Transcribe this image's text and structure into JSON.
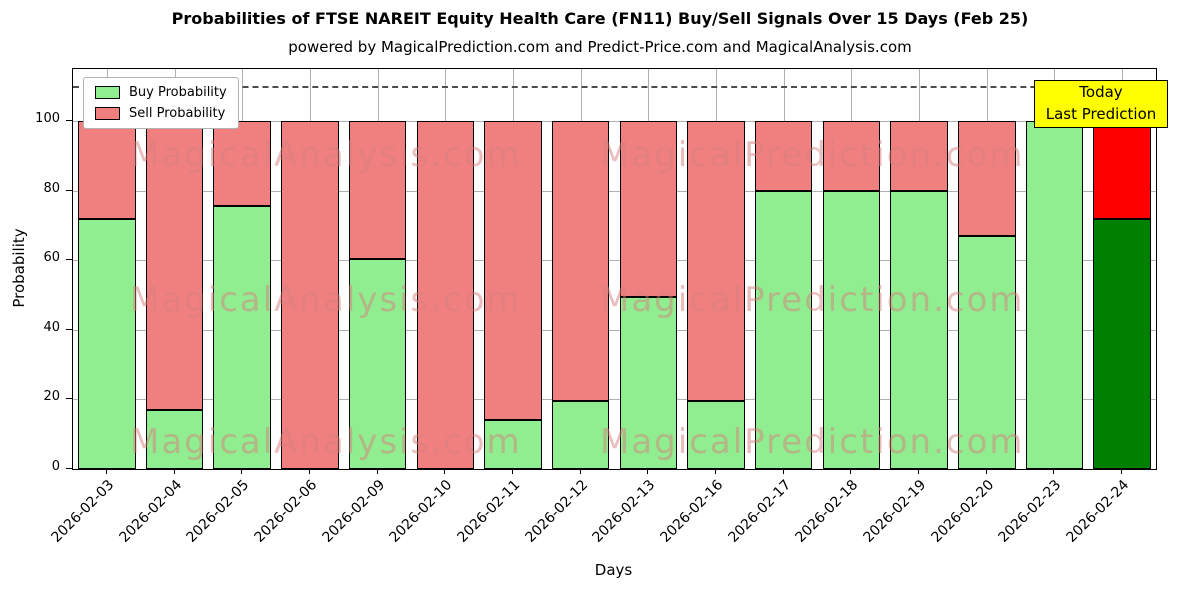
{
  "title": "Probabilities of FTSE NAREIT Equity Health Care (FN11) Buy/Sell Signals Over 15 Days (Feb 25)",
  "subtitle": "powered by MagicalPrediction.com and Predict-Price.com and MagicalAnalysis.com",
  "legend": {
    "buy_label": "Buy Probability",
    "sell_label": "Sell Probability"
  },
  "annotation": {
    "line1": "Today",
    "line2": "Last Prediction"
  },
  "watermarks": [
    "MagicalAnalysis.com",
    "MagicalPrediction.com"
  ],
  "colors": {
    "buy": "#90EE90",
    "sell": "#F08080",
    "today_buy": "#008000",
    "today_sell": "#FF0000",
    "annotation_bg": "#FFFF00",
    "watermark": "rgba(216,126,126,0.5)",
    "grid": "#b0b0b0"
  },
  "axes": {
    "xlabel": "Days",
    "ylabel": "Probability"
  },
  "chart_data": {
    "type": "bar",
    "stacked": true,
    "title": "Probabilities of FTSE NAREIT Equity Health Care (FN11) Buy/Sell Signals Over 15 Days (Feb 25)",
    "xlabel": "Days",
    "ylabel": "Probability",
    "categories": [
      "2026-02-03",
      "2026-02-04",
      "2026-02-05",
      "2026-02-06",
      "2026-02-09",
      "2026-02-10",
      "2026-02-11",
      "2026-02-12",
      "2026-02-13",
      "2026-02-16",
      "2026-02-17",
      "2026-02-18",
      "2026-02-19",
      "2026-02-20",
      "2026-02-23",
      "2026-02-24"
    ],
    "series": [
      {
        "name": "Buy Probability",
        "color": "#90EE90",
        "values": [
          72,
          17,
          75.5,
          0,
          60.5,
          0,
          14,
          19.5,
          49.5,
          19.5,
          80,
          80,
          80,
          67,
          100,
          72
        ]
      },
      {
        "name": "Sell Probability",
        "color": "#F08080",
        "values": [
          28,
          83,
          24.5,
          100,
          39.5,
          100,
          86,
          80.5,
          50.5,
          80.5,
          20,
          20,
          20,
          33,
          0,
          28
        ]
      }
    ],
    "today_index": 15,
    "today_colors": {
      "buy": "#008000",
      "sell": "#FF0000"
    },
    "ylim": [
      0,
      115
    ],
    "yticks": [
      0,
      20,
      40,
      60,
      80,
      100
    ],
    "dashed_line_y": 110,
    "grid": true,
    "legend_position": "upper left"
  }
}
